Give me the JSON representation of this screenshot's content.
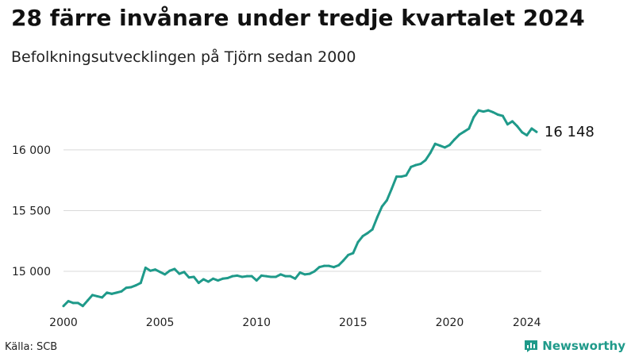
{
  "header": {
    "title": "28 färre invånare under tredje kvartalet 2024",
    "subtitle": "Befolkningsutvecklingen på Tjörn sedan 2000"
  },
  "footer": {
    "source": "Källa: SCB",
    "brand": "Newsworthy"
  },
  "colors": {
    "line": "#1f9a8a",
    "grid": "#d9d9d9",
    "brand": "#1f9a8a"
  },
  "chart_data": {
    "type": "line",
    "title": "28 färre invånare under tredje kvartalet 2024",
    "subtitle": "Befolkningsutvecklingen på Tjörn sedan 2000",
    "xlabel": "",
    "ylabel": "",
    "xlim": [
      2000,
      2024.75
    ],
    "ylim": [
      14700,
      16450
    ],
    "x_ticks": [
      2000,
      2005,
      2010,
      2015,
      2020,
      2024
    ],
    "y_ticks": [
      15000,
      15500,
      16000
    ],
    "y_tick_labels": [
      "15 000",
      "15 500",
      "16 000"
    ],
    "grid": "horizontal",
    "end_label": "16 148",
    "series": [
      {
        "values": [
          [
            2000.0,
            14715
          ],
          [
            2000.25,
            14755
          ],
          [
            2000.5,
            14740
          ],
          [
            2000.75,
            14740
          ],
          [
            2001.0,
            14715
          ],
          [
            2001.25,
            14760
          ],
          [
            2001.5,
            14805
          ],
          [
            2001.75,
            14795
          ],
          [
            2002.0,
            14785
          ],
          [
            2002.25,
            14825
          ],
          [
            2002.5,
            14815
          ],
          [
            2002.75,
            14825
          ],
          [
            2003.0,
            14835
          ],
          [
            2003.25,
            14865
          ],
          [
            2003.5,
            14870
          ],
          [
            2003.75,
            14885
          ],
          [
            2004.0,
            14905
          ],
          [
            2004.25,
            15030
          ],
          [
            2004.5,
            15005
          ],
          [
            2004.75,
            15015
          ],
          [
            2005.0,
            14995
          ],
          [
            2005.25,
            14975
          ],
          [
            2005.5,
            15005
          ],
          [
            2005.75,
            15020
          ],
          [
            2006.0,
            14980
          ],
          [
            2006.25,
            14995
          ],
          [
            2006.5,
            14950
          ],
          [
            2006.75,
            14955
          ],
          [
            2007.0,
            14905
          ],
          [
            2007.25,
            14935
          ],
          [
            2007.5,
            14915
          ],
          [
            2007.75,
            14940
          ],
          [
            2008.0,
            14925
          ],
          [
            2008.25,
            14940
          ],
          [
            2008.5,
            14945
          ],
          [
            2008.75,
            14960
          ],
          [
            2009.0,
            14965
          ],
          [
            2009.25,
            14955
          ],
          [
            2009.5,
            14960
          ],
          [
            2009.75,
            14960
          ],
          [
            2010.0,
            14925
          ],
          [
            2010.25,
            14965
          ],
          [
            2010.5,
            14960
          ],
          [
            2010.75,
            14955
          ],
          [
            2011.0,
            14955
          ],
          [
            2011.25,
            14975
          ],
          [
            2011.5,
            14960
          ],
          [
            2011.75,
            14960
          ],
          [
            2012.0,
            14940
          ],
          [
            2012.25,
            14990
          ],
          [
            2012.5,
            14975
          ],
          [
            2012.75,
            14980
          ],
          [
            2013.0,
            15000
          ],
          [
            2013.25,
            15035
          ],
          [
            2013.5,
            15045
          ],
          [
            2013.75,
            15045
          ],
          [
            2014.0,
            15035
          ],
          [
            2014.25,
            15050
          ],
          [
            2014.5,
            15090
          ],
          [
            2014.75,
            15135
          ],
          [
            2015.0,
            15150
          ],
          [
            2015.25,
            15240
          ],
          [
            2015.5,
            15290
          ],
          [
            2015.75,
            15315
          ],
          [
            2016.0,
            15345
          ],
          [
            2016.25,
            15445
          ],
          [
            2016.5,
            15535
          ],
          [
            2016.75,
            15585
          ],
          [
            2017.0,
            15680
          ],
          [
            2017.25,
            15780
          ],
          [
            2017.5,
            15780
          ],
          [
            2017.75,
            15790
          ],
          [
            2018.0,
            15860
          ],
          [
            2018.25,
            15875
          ],
          [
            2018.5,
            15885
          ],
          [
            2018.75,
            15915
          ],
          [
            2019.0,
            15975
          ],
          [
            2019.25,
            16050
          ],
          [
            2019.5,
            16035
          ],
          [
            2019.75,
            16020
          ],
          [
            2020.0,
            16040
          ],
          [
            2020.25,
            16085
          ],
          [
            2020.5,
            16125
          ],
          [
            2020.75,
            16150
          ],
          [
            2021.0,
            16175
          ],
          [
            2021.25,
            16270
          ],
          [
            2021.5,
            16325
          ],
          [
            2021.75,
            16315
          ],
          [
            2022.0,
            16325
          ],
          [
            2022.25,
            16310
          ],
          [
            2022.5,
            16290
          ],
          [
            2022.75,
            16280
          ],
          [
            2023.0,
            16210
          ],
          [
            2023.25,
            16235
          ],
          [
            2023.5,
            16195
          ],
          [
            2023.75,
            16145
          ],
          [
            2024.0,
            16120
          ],
          [
            2024.25,
            16176
          ],
          [
            2024.5,
            16148
          ]
        ]
      }
    ]
  }
}
